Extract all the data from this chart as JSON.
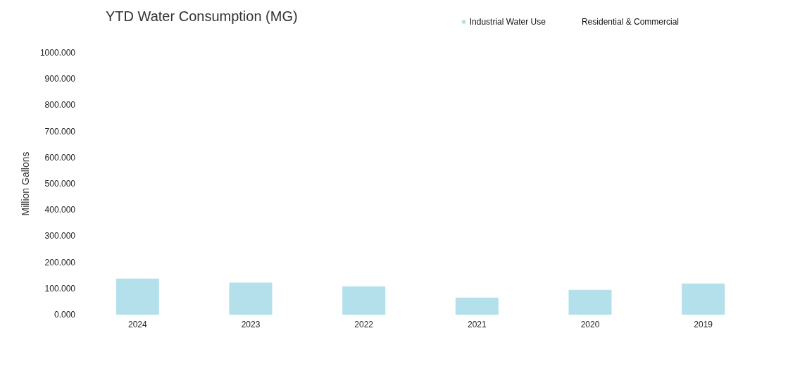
{
  "chart_data": {
    "type": "bar",
    "title": "YTD Water Consumption (MG)",
    "ylabel": "Million Gallons",
    "categories": [
      "2024",
      "2023",
      "2022",
      "2021",
      "2020",
      "2019"
    ],
    "series": [
      {
        "name": "Industrial Water Use",
        "color": "#b4e0ec",
        "values": [
          138,
          122,
          108,
          65,
          95,
          119
        ]
      },
      {
        "name": "Residential & Commercial",
        "values": [
          null,
          null,
          null,
          null,
          null,
          null
        ]
      }
    ],
    "ylim": [
      0,
      1000
    ],
    "yticks": [
      {
        "value": 0,
        "label": "0.000"
      },
      {
        "value": 100,
        "label": "100.000"
      },
      {
        "value": 200,
        "label": "200.000"
      },
      {
        "value": 300,
        "label": "300.000"
      },
      {
        "value": 400,
        "label": "400.000"
      },
      {
        "value": 500,
        "label": "500.000"
      },
      {
        "value": 600,
        "label": "600.000"
      },
      {
        "value": 700,
        "label": "700.000"
      },
      {
        "value": 800,
        "label": "800.000"
      },
      {
        "value": 900,
        "label": "900.000"
      },
      {
        "value": 1000,
        "label": "1000.000"
      }
    ],
    "grid": false,
    "legend": "top right",
    "stacked": true
  }
}
